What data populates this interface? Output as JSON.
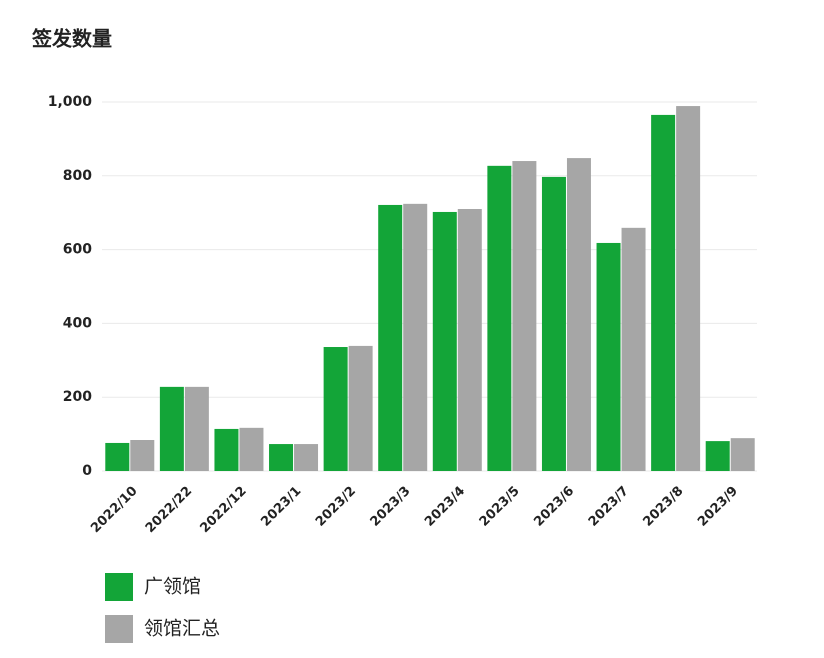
{
  "chart_data": {
    "type": "bar",
    "title": "签发数量",
    "categories": [
      "2022/10",
      "2022/22",
      "2022/12",
      "2023/1",
      "2023/2",
      "2023/3",
      "2023/4",
      "2023/5",
      "2023/6",
      "2023/7",
      "2023/8",
      "2023/9"
    ],
    "series": [
      {
        "name": "广领馆",
        "color": "#13a538",
        "values": [
          76,
          228,
          114,
          73,
          336,
          721,
          702,
          827,
          797,
          618,
          965,
          81
        ]
      },
      {
        "name": "领馆汇总",
        "color": "#a6a6a6",
        "values": [
          84,
          228,
          117,
          73,
          339,
          724,
          710,
          840,
          848,
          659,
          989,
          89
        ]
      }
    ],
    "ylim": [
      0,
      1000
    ],
    "yticks": [
      0,
      200,
      400,
      600,
      800,
      {
        "value": 1000,
        "label": "1,000"
      }
    ],
    "grid": true
  }
}
